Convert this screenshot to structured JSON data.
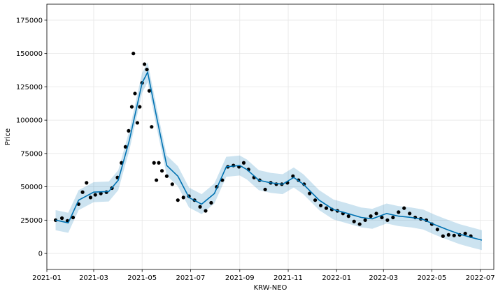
{
  "chart_data": {
    "type": "line",
    "xlabel": "KRW-NEO",
    "ylabel": "Price",
    "x_range": [
      "2021-01-01",
      "2022-07-18"
    ],
    "ylim": [
      -12000,
      187000
    ],
    "grid": true,
    "x_ticks": [
      "2021-01",
      "2021-03",
      "2021-05",
      "2021-07",
      "2021-09",
      "2021-11",
      "2022-01",
      "2022-03",
      "2022-05",
      "2022-07"
    ],
    "y_ticks": [
      0,
      25000,
      50000,
      75000,
      100000,
      125000,
      150000,
      175000
    ],
    "y_tick_labels": [
      "0",
      "25000",
      "50000",
      "75000",
      "100000",
      "125000",
      "150000",
      "175000"
    ],
    "colors": {
      "observed": "#000000",
      "forecast": "#0072b2",
      "uncertainty": "#0072b2"
    },
    "series": [
      {
        "role": "observed",
        "style": "points",
        "x": [
          "2021-01-12",
          "2021-01-20",
          "2021-01-27",
          "2021-02-03",
          "2021-02-10",
          "2021-02-15",
          "2021-02-20",
          "2021-02-25",
          "2021-03-03",
          "2021-03-10",
          "2021-03-17",
          "2021-03-24",
          "2021-03-31",
          "2021-04-05",
          "2021-04-10",
          "2021-04-14",
          "2021-04-18",
          "2021-04-20",
          "2021-04-22",
          "2021-04-25",
          "2021-04-28",
          "2021-05-01",
          "2021-05-04",
          "2021-05-07",
          "2021-05-10",
          "2021-05-13",
          "2021-05-16",
          "2021-05-19",
          "2021-05-22",
          "2021-05-26",
          "2021-06-01",
          "2021-06-08",
          "2021-06-15",
          "2021-06-22",
          "2021-06-29",
          "2021-07-06",
          "2021-07-13",
          "2021-07-20",
          "2021-07-27",
          "2021-08-03",
          "2021-08-10",
          "2021-08-17",
          "2021-08-24",
          "2021-08-31",
          "2021-09-06",
          "2021-09-12",
          "2021-09-19",
          "2021-09-26",
          "2021-10-03",
          "2021-10-10",
          "2021-10-17",
          "2021-10-24",
          "2021-10-31",
          "2021-11-07",
          "2021-11-14",
          "2021-11-21",
          "2021-11-28",
          "2021-12-05",
          "2021-12-12",
          "2021-12-19",
          "2021-12-26",
          "2022-01-02",
          "2022-01-09",
          "2022-01-16",
          "2022-01-23",
          "2022-01-30",
          "2022-02-06",
          "2022-02-13",
          "2022-02-20",
          "2022-02-27",
          "2022-03-06",
          "2022-03-13",
          "2022-03-20",
          "2022-03-27",
          "2022-04-03",
          "2022-04-10",
          "2022-04-17",
          "2022-04-24",
          "2022-05-01",
          "2022-05-08",
          "2022-05-15",
          "2022-05-22",
          "2022-05-29",
          "2022-06-05",
          "2022-06-12",
          "2022-06-19"
        ],
        "values": [
          25000,
          26500,
          24500,
          27000,
          37000,
          46000,
          53000,
          42000,
          44000,
          45000,
          46000,
          49000,
          57000,
          68000,
          80000,
          92000,
          110000,
          150000,
          120000,
          98000,
          110000,
          128000,
          142000,
          138000,
          122000,
          95000,
          68000,
          55000,
          68000,
          62000,
          58000,
          52000,
          40000,
          42000,
          43000,
          40000,
          35000,
          32000,
          38000,
          50000,
          55000,
          65000,
          66000,
          65000,
          68000,
          63000,
          57000,
          55000,
          48000,
          53000,
          52000,
          52000,
          53000,
          58000,
          55000,
          52000,
          45000,
          40000,
          36000,
          34000,
          33000,
          32000,
          30000,
          28000,
          24000,
          22000,
          25000,
          28000,
          30000,
          27000,
          25000,
          27000,
          31000,
          34000,
          30000,
          27000,
          26000,
          25000,
          22000,
          18000,
          13000,
          14000,
          13500,
          14000,
          15000,
          13000
        ]
      },
      {
        "role": "forecast",
        "style": "line",
        "x": [
          "2021-01-12",
          "2021-01-28",
          "2021-02-10",
          "2021-03-01",
          "2021-03-20",
          "2021-04-01",
          "2021-04-15",
          "2021-05-01",
          "2021-05-08",
          "2021-05-20",
          "2021-06-01",
          "2021-06-15",
          "2021-06-29",
          "2021-07-15",
          "2021-07-31",
          "2021-08-15",
          "2021-09-01",
          "2021-09-10",
          "2021-09-25",
          "2021-10-10",
          "2021-10-25",
          "2021-11-08",
          "2021-11-20",
          "2021-12-10",
          "2021-12-28",
          "2022-01-15",
          "2022-02-01",
          "2022-02-15",
          "2022-03-05",
          "2022-03-20",
          "2022-04-05",
          "2022-04-20",
          "2022-05-05",
          "2022-05-20",
          "2022-06-05",
          "2022-06-20",
          "2022-07-03"
        ],
        "values": [
          25000,
          23000,
          40000,
          46000,
          46500,
          55000,
          85000,
          128000,
          136000,
          100000,
          66000,
          58000,
          42000,
          37000,
          45000,
          65000,
          66000,
          63000,
          55000,
          53000,
          52000,
          57000,
          52000,
          40000,
          33000,
          30000,
          27000,
          26000,
          30000,
          28000,
          27000,
          25500,
          21500,
          18000,
          14500,
          12000,
          10000
        ]
      },
      {
        "role": "uncertainty",
        "style": "band",
        "half_width": 7500
      }
    ]
  }
}
